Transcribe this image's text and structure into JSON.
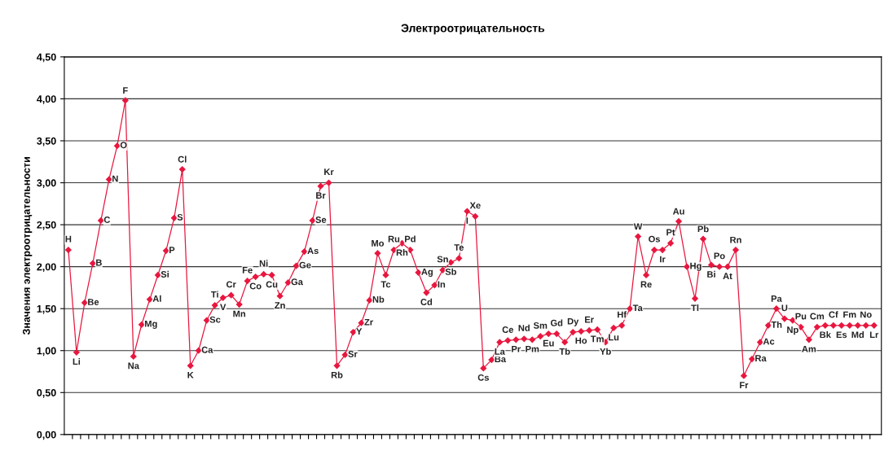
{
  "chart_data": {
    "type": "line",
    "title": "Электроотрицательность",
    "ylabel": "Значения электроотрицательности",
    "categories": [
      null,
      null,
      null,
      null,
      null,
      null,
      null,
      null,
      null,
      null,
      null,
      null,
      null,
      null,
      null,
      null,
      null,
      null,
      null,
      null,
      null,
      null,
      null,
      null,
      null,
      null,
      null,
      null,
      null,
      null,
      null,
      null,
      null,
      null,
      null,
      null,
      null,
      null,
      null,
      null,
      null,
      null,
      null,
      null,
      null,
      null,
      null,
      null,
      null,
      null,
      null,
      null,
      null,
      null,
      null,
      null,
      null,
      null,
      null,
      null,
      null,
      null,
      null,
      null,
      null,
      null,
      null,
      null,
      null,
      null,
      null,
      null,
      null,
      null,
      null,
      null,
      null,
      null,
      null,
      null,
      null,
      null,
      null,
      null,
      null,
      null,
      null,
      null,
      null,
      null,
      null,
      null,
      null,
      null,
      null,
      null,
      null,
      null,
      null,
      null
    ],
    "series": [
      {
        "color": "#e8173f",
        "values": [
          2.2,
          0.98,
          1.57,
          2.04,
          2.55,
          3.04,
          3.44,
          3.98,
          0.93,
          1.31,
          1.61,
          1.9,
          2.19,
          2.58,
          3.16,
          0.82,
          1.0,
          1.36,
          1.54,
          1.63,
          1.66,
          1.55,
          1.83,
          1.88,
          1.91,
          1.9,
          1.65,
          1.81,
          2.01,
          2.18,
          2.55,
          2.96,
          3.0,
          0.82,
          0.95,
          1.22,
          1.33,
          1.6,
          2.16,
          1.9,
          2.2,
          2.28,
          2.2,
          1.93,
          1.69,
          1.78,
          1.96,
          2.05,
          2.1,
          2.66,
          2.6,
          0.79,
          0.89,
          1.1,
          1.12,
          1.13,
          1.14,
          1.13,
          1.17,
          1.2,
          1.2,
          1.1,
          1.22,
          1.23,
          1.24,
          1.25,
          1.1,
          1.27,
          1.3,
          1.5,
          2.36,
          1.9,
          2.2,
          2.2,
          2.28,
          2.54,
          2.0,
          1.62,
          2.33,
          2.02,
          2.0,
          2.0,
          2.2,
          0.7,
          0.9,
          1.1,
          1.3,
          1.5,
          1.38,
          1.36,
          1.28,
          1.13,
          1.28,
          1.3,
          1.3,
          1.3,
          1.3,
          1.3,
          1.3,
          1.3
        ],
        "value_labels": [
          "H",
          "Li",
          "Be",
          "B",
          "C",
          "N",
          "O",
          "F",
          "Na",
          "Mg",
          "Al",
          "Si",
          "P",
          "S",
          "Cl",
          "K",
          "Ca",
          "Sc",
          "Ti",
          "V",
          "Cr",
          "Mn",
          "Fe",
          "Co",
          "Ni",
          "Cu",
          "Zn",
          "Ga",
          "Ge",
          "As",
          "Se",
          "Br",
          "Kr",
          "Rb",
          "Sr",
          "Y",
          "Zr",
          "Nb",
          "Mo",
          "Tc",
          "Ru",
          "Rh",
          "Pd",
          "Ag",
          "Cd",
          "In",
          "Sn",
          "Sb",
          "Te",
          "I",
          "Xe",
          "Cs",
          "Ba",
          "La",
          "Ce",
          "Pr",
          "Nd",
          "Pm",
          "Sm",
          "Eu",
          "Gd",
          "Tb",
          "Dy",
          "Ho",
          "Er",
          "Tm",
          "Yb",
          "Lu",
          "Hf",
          "Ta",
          "W",
          "Re",
          "Os",
          "Ir",
          "Pt",
          "Au",
          "Hg",
          "Tl",
          "Pb",
          "Bi",
          "Po",
          "At",
          "Rn",
          "Fr",
          "Ra",
          "Ac",
          "Th",
          "Pa",
          "U",
          "Np",
          "Pu",
          "Am",
          "Cm",
          "Bk",
          "Cf",
          "Es",
          "Fm",
          "Md",
          "No",
          "Lr"
        ]
      }
    ],
    "ylim": [
      0,
      4.5
    ],
    "yticks": [
      {
        "value": 0,
        "label": "0,00"
      },
      {
        "value": 0.5,
        "label": "0,50"
      },
      {
        "value": 1,
        "label": "1,00"
      },
      {
        "value": 1.5,
        "label": "1,50"
      },
      {
        "value": 2,
        "label": "2,00"
      },
      {
        "value": 2.5,
        "label": "2,50"
      },
      {
        "value": 3,
        "label": "3,00"
      },
      {
        "value": 3.5,
        "label": "3,50"
      },
      {
        "value": 4,
        "label": "4,00"
      },
      {
        "value": 4.5,
        "label": "4,50"
      }
    ],
    "grid": "y",
    "marker": "diamond",
    "line_style": "solid",
    "tick_labels": "y"
  }
}
